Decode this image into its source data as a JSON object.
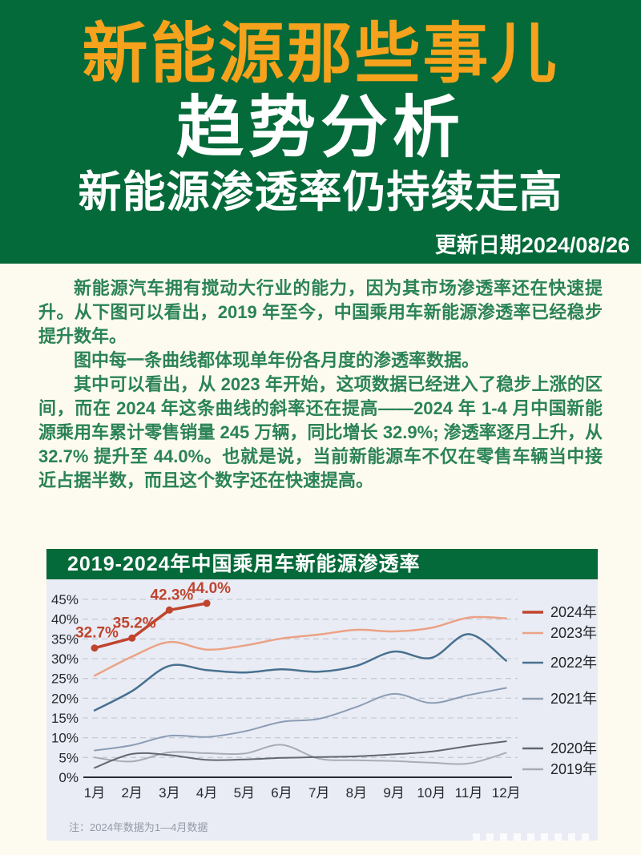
{
  "colors": {
    "header_green": "#046a39",
    "brand_orange": "#f6a21c",
    "body_text_green": "#2b8355",
    "page_background": "#fdfbf0",
    "chart_panel_background": "#e9ecf4",
    "gridline": "#c7cbd5",
    "axis": "#2a2c32"
  },
  "header": {
    "brand": "新能源那些事儿",
    "title": "趋势分析",
    "subtitle": "新能源渗透率仍持续走高",
    "update_date": "更新日期2024/08/26"
  },
  "intro": {
    "paragraphs": [
      "新能源汽车拥有搅动大行业的能力，因为其市场渗透率还在快速提升。从下图可以看出，2019 年至今，中国乘用车新能源渗透率已经稳步提升数年。",
      "图中每一条曲线都体现单年份各月度的渗透率数据。",
      "其中可以看出，从 2023 年开始，这项数据已经进入了稳步上涨的区间，而在 2024 年这条曲线的斜率还在提高——2024 年 1-4 月中国新能源乘用车累计零售销量 245 万辆，同比增长 32.9%; 渗透率逐月上升，从 32.7% 提升至 44.0%。也就是说，当前新能源车不仅在零售车辆当中接近占据半数，而且这个数字还在快速提高。"
    ]
  },
  "chart_data": {
    "type": "line",
    "title": "2019-2024年中国乘用车新能源渗透率",
    "note": "注：2024年数据为1—4月数据",
    "x": [
      "1月",
      "2月",
      "3月",
      "4月",
      "5月",
      "6月",
      "7月",
      "8月",
      "9月",
      "10月",
      "11月",
      "12月"
    ],
    "ylim": [
      0,
      47
    ],
    "yticks": [
      "0%",
      "5%",
      "10%",
      "15%",
      "20%",
      "25%",
      "30%",
      "35%",
      "40%",
      "45%"
    ],
    "grid": true,
    "legend_position": "right",
    "series": [
      {
        "name": "2024年",
        "color": "#c0442e",
        "width": 3.5,
        "straight": true,
        "markers": true,
        "values": [
          32.7,
          35.2,
          42.3,
          44.0
        ],
        "point_labels": [
          "32.7%",
          "35.2%",
          "42.3%",
          "44.0%"
        ]
      },
      {
        "name": "2023年",
        "color": "#eba285",
        "width": 2.5,
        "values": [
          25.7,
          30.5,
          34.2,
          32.3,
          33.3,
          35.1,
          36.1,
          37.3,
          36.9,
          37.8,
          40.4,
          40.2
        ]
      },
      {
        "name": "2022年",
        "color": "#48708f",
        "width": 2.5,
        "values": [
          16.9,
          21.8,
          28.2,
          27.1,
          26.5,
          27.3,
          26.7,
          28.2,
          31.8,
          30.2,
          36.2,
          29.5
        ]
      },
      {
        "name": "2021年",
        "color": "#8c9cb5",
        "width": 2,
        "values": [
          6.8,
          8.1,
          10.5,
          10.2,
          11.6,
          14.0,
          14.8,
          17.8,
          21.1,
          18.8,
          20.8,
          22.6
        ]
      },
      {
        "name": "2020年",
        "color": "#62686f",
        "width": 2,
        "values": [
          2.4,
          5.9,
          5.6,
          4.4,
          4.5,
          4.9,
          5.1,
          5.3,
          5.8,
          6.5,
          7.9,
          9.1
        ]
      },
      {
        "name": "2019年",
        "color": "#a8acb3",
        "width": 2,
        "values": [
          5.0,
          4.0,
          6.3,
          6.1,
          6.0,
          8.2,
          4.7,
          4.3,
          4.1,
          3.7,
          3.5,
          6.2
        ]
      }
    ]
  }
}
